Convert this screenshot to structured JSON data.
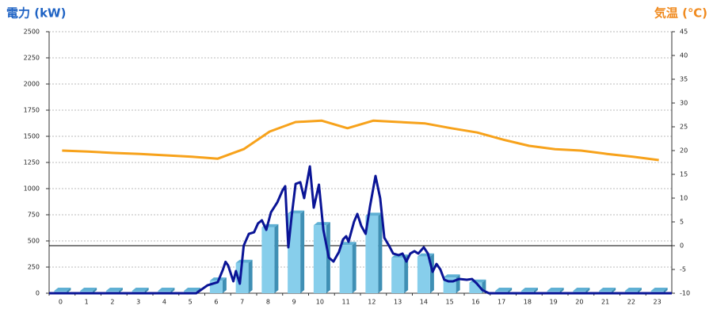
{
  "chart_data": {
    "type": "combo",
    "y_title": "電力 (kW)",
    "y2_title": "気温 (℃)",
    "categories": [
      "0",
      "1",
      "2",
      "3",
      "4",
      "5",
      "6",
      "7",
      "8",
      "9",
      "10",
      "11",
      "12",
      "13",
      "14",
      "15",
      "16",
      "17",
      "18",
      "19",
      "20",
      "21",
      "22",
      "23"
    ],
    "ylim": [
      0,
      2500
    ],
    "yticks": [
      0,
      250,
      500,
      750,
      1000,
      1250,
      1500,
      1750,
      2000,
      2250,
      2500
    ],
    "y2lim": [
      -10,
      45
    ],
    "y2ticks": [
      -10,
      -5,
      0,
      5,
      10,
      15,
      20,
      25,
      30,
      35,
      40,
      45
    ],
    "grid": true,
    "series": [
      {
        "kind": "bar",
        "color": "#87ceeb",
        "values": [
          0,
          0,
          0,
          0,
          0,
          0,
          120,
          290,
          630,
          760,
          650,
          460,
          740,
          340,
          350,
          150,
          100,
          0,
          0,
          0,
          0,
          0,
          0,
          0
        ]
      },
      {
        "kind": "line",
        "color": "#0a1496",
        "x": [
          -0.5,
          5.17,
          5.6,
          6.0,
          6.2,
          6.3,
          6.4,
          6.6,
          6.7,
          6.85,
          7.0,
          7.2,
          7.4,
          7.55,
          7.7,
          7.87,
          8.05,
          8.3,
          8.5,
          8.6,
          8.72,
          8.85,
          9.0,
          9.18,
          9.33,
          9.55,
          9.7,
          9.9,
          10.07,
          10.28,
          10.46,
          10.67,
          10.83,
          10.95,
          11.04,
          11.25,
          11.38,
          11.53,
          11.7,
          11.87,
          12.08,
          12.26,
          12.42,
          12.6,
          12.76,
          12.97,
          13.12,
          13.27,
          13.42,
          13.58,
          13.73,
          13.94,
          14.1,
          14.28,
          14.43,
          14.58,
          14.73,
          14.89,
          15.07,
          15.3,
          15.6,
          15.8,
          15.99,
          16.2,
          16.45,
          23.5
        ],
        "values": [
          0,
          0,
          75,
          106,
          227,
          300,
          265,
          114,
          212,
          91,
          455,
          568,
          583,
          667,
          697,
          606,
          773,
          871,
          985,
          1023,
          439,
          742,
          1045,
          1061,
          909,
          1212,
          818,
          1038,
          606,
          341,
          303,
          394,
          515,
          545,
          492,
          682,
          758,
          644,
          568,
          833,
          1121,
          909,
          530,
          455,
          379,
          364,
          379,
          303,
          379,
          402,
          379,
          439,
          379,
          205,
          280,
          227,
          129,
          114,
          114,
          136,
          129,
          136,
          91,
          30,
          0,
          0
        ]
      },
      {
        "kind": "line",
        "axis": "y2",
        "color": "#f7a21b",
        "values": [
          20,
          19.8,
          19.5,
          19.3,
          19.0,
          18.7,
          18.3,
          20.3,
          24.0,
          26.0,
          26.3,
          24.7,
          26.3,
          26.0,
          25.7,
          24.7,
          23.8,
          22.3,
          21.0,
          20.3,
          20.0,
          19.3,
          18.7,
          18.0
        ]
      }
    ]
  }
}
